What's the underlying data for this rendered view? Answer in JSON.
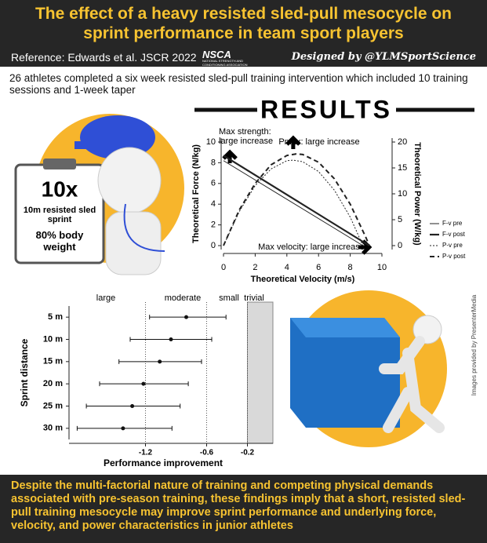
{
  "header": {
    "title": "The effect of a heavy resisted sled-pull mesocycle on sprint performance in team sport players",
    "reference": "Reference: Edwards et al. JSCR 2022",
    "logo": "NSCA",
    "logo_subtitle": "NATIONAL STRENGTH AND CONDITIONING ASSOCIATION",
    "designed_by": "Designed by @YLMSportScience"
  },
  "intro": "26 athletes completed a six week resisted sled-pull training intervention which included 10 training sessions and 1-week taper",
  "results_heading": "RESULTS",
  "clipboard": {
    "reps": "10x",
    "exercise": "10m resisted sled sprint",
    "load": "80% body weight"
  },
  "image_credit": "Images provided by PresenterMedia",
  "conclusion": "Despite the multi-factorial nature of training and competing physical demands associated with pre-season training, these findings imply that a short, resisted sled-pull training mesocycle may improve sprint performance and underlying force, velocity, and power characteristics in junior athletes",
  "chart_data": [
    {
      "type": "line",
      "x_label": "Theoretical Velocity (m/s)",
      "y_label": "Theoretical Force (N/kg)",
      "y2_label": "Theoretical Power (W/kg)",
      "xlim": [
        0,
        10
      ],
      "xticks": [
        0,
        2,
        4,
        6,
        8,
        10
      ],
      "ylim": [
        0,
        10
      ],
      "yticks": [
        0,
        2,
        4,
        6,
        8,
        10
      ],
      "y2lim": [
        0,
        20
      ],
      "y2ticks": [
        0,
        5,
        10,
        15,
        20
      ],
      "legend": "right",
      "annotations": [
        "Max strength:",
        "large increase",
        "Pmax: large increase",
        "Max velocity: large increase"
      ],
      "series": [
        {
          "name": "F-v pre",
          "color": "#222222",
          "line_style": "thin",
          "x": [
            0,
            8.8
          ],
          "values": [
            8.2,
            0
          ]
        },
        {
          "name": "F-v post",
          "color": "#222222",
          "line_style": "thick",
          "x": [
            0,
            9.2
          ],
          "values": [
            8.7,
            0
          ]
        },
        {
          "name": "P-v pre",
          "color": "#222222",
          "line_style": "dotted",
          "axis": "y2",
          "x": [
            0,
            1,
            2,
            3,
            4,
            4.4,
            5,
            6,
            7,
            8,
            8.8
          ],
          "values": [
            0,
            6.6,
            11.6,
            14.8,
            16.4,
            16.5,
            16.2,
            14.3,
            10.7,
            5.5,
            0
          ]
        },
        {
          "name": "P-v post",
          "color": "#222222",
          "line_style": "dashed",
          "axis": "y2",
          "x": [
            0,
            1,
            2,
            3,
            4,
            4.6,
            5,
            6,
            7,
            8,
            9,
            9.2
          ],
          "values": [
            0,
            6.9,
            12.0,
            15.6,
            17.4,
            17.7,
            17.6,
            16.1,
            12.9,
            8.0,
            1.5,
            0
          ]
        }
      ]
    },
    {
      "type": "forest",
      "x_label": "Performance improvement",
      "y_label": "Sprint distance",
      "categories": [
        "5 m",
        "10 m",
        "15 m",
        "20 m",
        "25 m",
        "30 m"
      ],
      "values": [
        -0.8,
        -0.95,
        -1.06,
        -1.22,
        -1.33,
        -1.42
      ],
      "lower": [
        -1.16,
        -1.35,
        -1.46,
        -1.65,
        -1.78,
        -1.87
      ],
      "upper": [
        -0.41,
        -0.55,
        -0.65,
        -0.78,
        -0.86,
        -0.94
      ],
      "xlim": [
        -1.95,
        0.05
      ],
      "xticks": [
        -1.2,
        -0.6,
        -0.2
      ],
      "regions": [
        "large",
        "moderate",
        "small",
        "trivial"
      ],
      "color": "#111111",
      "shade_color": "#d9d9d9"
    }
  ]
}
